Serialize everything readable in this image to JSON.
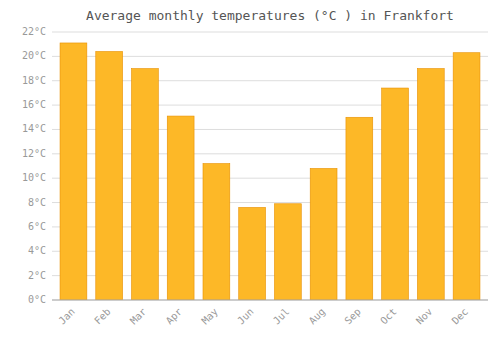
{
  "chart_data": {
    "type": "bar",
    "title": "Average monthly temperatures (°C ) in Frankfort",
    "categories": [
      "Jan",
      "Feb",
      "Mar",
      "Apr",
      "May",
      "Jun",
      "Jul",
      "Aug",
      "Sep",
      "Oct",
      "Nov",
      "Dec"
    ],
    "values": [
      21.1,
      20.4,
      19.0,
      15.1,
      11.2,
      7.6,
      7.9,
      10.8,
      15.0,
      17.4,
      19.0,
      20.3
    ],
    "color": "#FDB827",
    "ylim": [
      0,
      22
    ],
    "yticks": [
      {
        "value": 0,
        "label": "0°C"
      },
      {
        "value": 2,
        "label": "2°C"
      },
      {
        "value": 4,
        "label": "4°C"
      },
      {
        "value": 6,
        "label": "6°C"
      },
      {
        "value": 8,
        "label": "8°C"
      },
      {
        "value": 10,
        "label": "10°C"
      },
      {
        "value": 12,
        "label": "12°C"
      },
      {
        "value": 14,
        "label": "14°C"
      },
      {
        "value": 16,
        "label": "16°C"
      },
      {
        "value": 18,
        "label": "18°C"
      },
      {
        "value": 20,
        "label": "20°C"
      },
      {
        "value": 22,
        "label": "22°C"
      }
    ],
    "grid": true
  }
}
